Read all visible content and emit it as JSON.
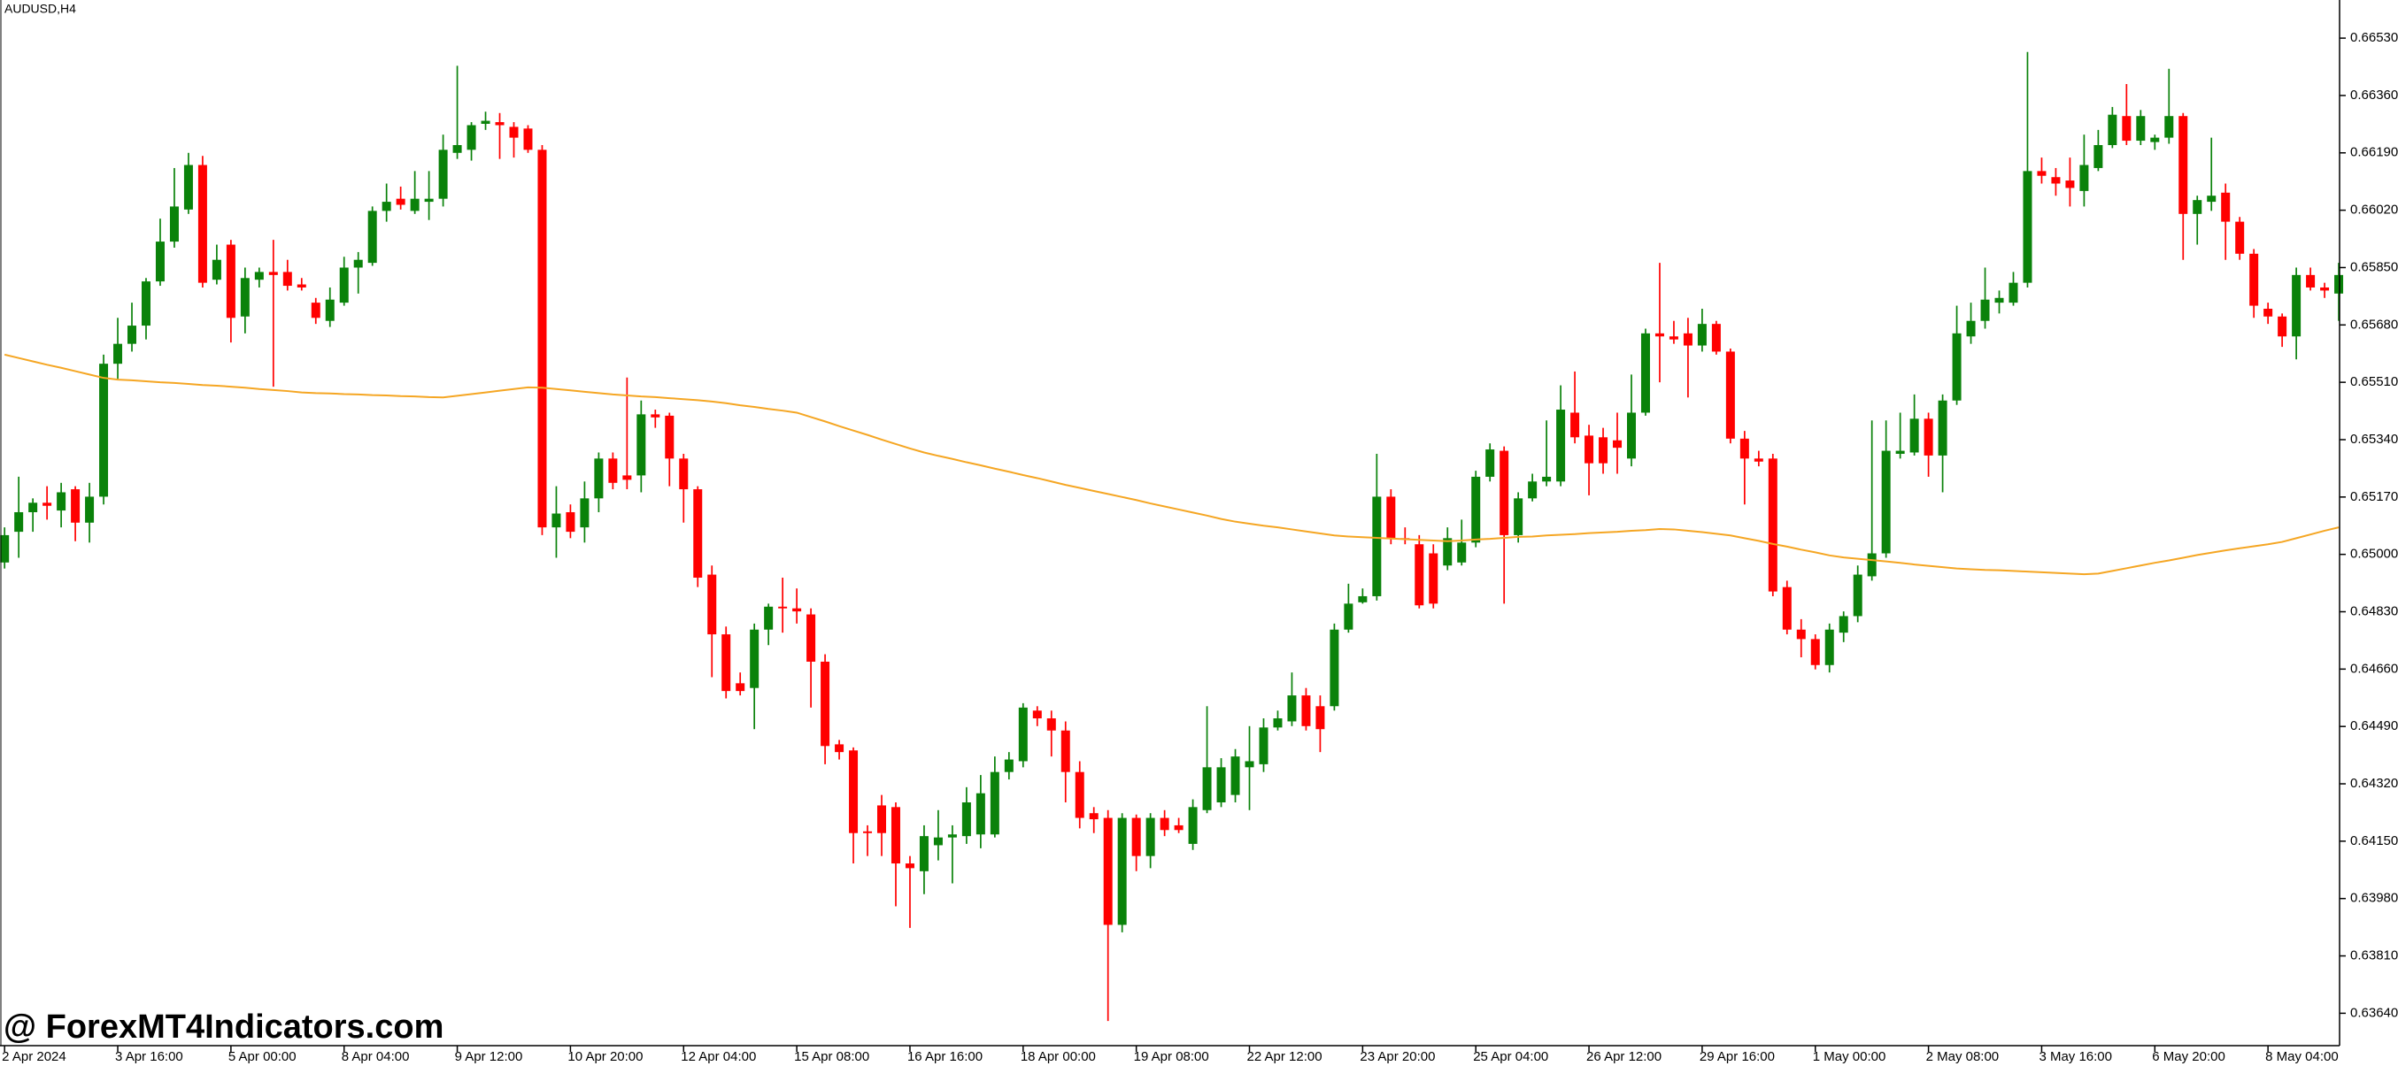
{
  "chart_data": {
    "type": "candlestick",
    "title": "AUDUSD,H4",
    "watermark": "@ ForexMT4Indicators.com",
    "up_color": "#0a820a",
    "down_color": "#ff0000",
    "ylim": [
      0.63544,
      0.66643
    ],
    "yticks": [
      {
        "value": 0.6653,
        "label": "0.66530"
      },
      {
        "value": 0.6636,
        "label": "0.66360"
      },
      {
        "value": 0.6619,
        "label": "0.66190"
      },
      {
        "value": 0.6602,
        "label": "0.66020"
      },
      {
        "value": 0.6585,
        "label": "0.65850"
      },
      {
        "value": 0.6568,
        "label": "0.65680"
      },
      {
        "value": 0.6551,
        "label": "0.65510"
      },
      {
        "value": 0.6534,
        "label": "0.65340"
      },
      {
        "value": 0.6517,
        "label": "0.65170"
      },
      {
        "value": 0.65,
        "label": "0.65000"
      },
      {
        "value": 0.6483,
        "label": "0.64830"
      },
      {
        "value": 0.6466,
        "label": "0.64660"
      },
      {
        "value": 0.6449,
        "label": "0.64490"
      },
      {
        "value": 0.6432,
        "label": "0.64320"
      },
      {
        "value": 0.6415,
        "label": "0.64150"
      },
      {
        "value": 0.6398,
        "label": "0.63980"
      },
      {
        "value": 0.6381,
        "label": "0.63810"
      },
      {
        "value": 0.6364,
        "label": "0.63640"
      }
    ],
    "categories": [
      "2 Apr 2024",
      null,
      null,
      null,
      null,
      null,
      null,
      null,
      "3 Apr 16:00",
      null,
      null,
      null,
      null,
      null,
      null,
      null,
      "5 Apr 00:00",
      null,
      null,
      null,
      null,
      null,
      null,
      null,
      "8 Apr 04:00",
      null,
      null,
      null,
      null,
      null,
      null,
      null,
      "9 Apr 12:00",
      null,
      null,
      null,
      null,
      null,
      null,
      null,
      "10 Apr 20:00",
      null,
      null,
      null,
      null,
      null,
      null,
      null,
      "12 Apr 04:00",
      null,
      null,
      null,
      null,
      null,
      null,
      null,
      "15 Apr 08:00",
      null,
      null,
      null,
      null,
      null,
      null,
      null,
      "16 Apr 16:00",
      null,
      null,
      null,
      null,
      null,
      null,
      null,
      "18 Apr 00:00",
      null,
      null,
      null,
      null,
      null,
      null,
      null,
      "19 Apr 08:00",
      null,
      null,
      null,
      null,
      null,
      null,
      null,
      "22 Apr 12:00",
      null,
      null,
      null,
      null,
      null,
      null,
      null,
      "23 Apr 20:00",
      null,
      null,
      null,
      null,
      null,
      null,
      null,
      "25 Apr 04:00",
      null,
      null,
      null,
      null,
      null,
      null,
      null,
      "26 Apr 12:00",
      null,
      null,
      null,
      null,
      null,
      null,
      null,
      "29 Apr 16:00",
      null,
      null,
      null,
      null,
      null,
      null,
      null,
      "1 May 00:00",
      null,
      null,
      null,
      null,
      null,
      null,
      null,
      "2 May 08:00",
      null,
      null,
      null,
      null,
      null,
      null,
      null,
      "3 May 16:00",
      null,
      null,
      null,
      null,
      null,
      null,
      null,
      "6 May 20:00",
      null,
      null,
      null,
      null,
      null,
      null,
      null,
      "8 May 04:00",
      null,
      null,
      null,
      null,
      null
    ],
    "open": [
      0.64976,
      0.65067,
      0.65125,
      0.65153,
      0.6513,
      0.65193,
      0.65094,
      0.65171,
      0.65565,
      0.65624,
      0.65678,
      0.65809,
      0.65927,
      0.66022,
      0.66154,
      0.65814,
      0.65918,
      0.65705,
      0.65814,
      0.65837,
      0.65837,
      0.658,
      0.65746,
      0.65692,
      0.65746,
      0.6585,
      0.65864,
      0.66018,
      0.66054,
      0.66018,
      0.66045,
      0.66054,
      0.6619,
      0.66199,
      0.66276,
      0.66281,
      0.66267,
      0.66262,
      0.66199,
      0.6508,
      0.65125,
      0.6508,
      0.65166,
      0.65284,
      0.65234,
      0.65234,
      0.65415,
      0.65411,
      0.65284,
      0.65193,
      0.6494,
      0.64763,
      0.64618,
      0.64604,
      0.64777,
      0.64845,
      0.6484,
      0.64822,
      0.64682,
      0.64437,
      0.64419,
      0.64179,
      0.64256,
      0.64251,
      0.64084,
      0.64061,
      0.64138,
      0.64161,
      0.64165,
      0.6417,
      0.6417,
      0.64355,
      0.64387,
      0.64537,
      0.64514,
      0.64478,
      0.64355,
      0.64233,
      0.64219,
      0.63902,
      0.64219,
      0.64106,
      0.64219,
      0.64197,
      0.64142,
      0.64242,
      0.64265,
      0.64287,
      0.64369,
      0.64378,
      0.64487,
      0.64505,
      0.64582,
      0.6455,
      0.6455,
      0.64777,
      0.64858,
      0.64876,
      0.65171,
      0.65048,
      0.6503,
      0.65003,
      0.64967,
      0.64976,
      0.65035,
      0.6523,
      0.65307,
      0.65057,
      0.65166,
      0.65216,
      0.65216,
      0.6542,
      0.65352,
      0.65347,
      0.65338,
      0.65284,
      0.6542,
      0.65655,
      0.65646,
      0.65655,
      0.65619,
      0.65683,
      0.65601,
      0.65343,
      0.65284,
      0.65284,
      0.64903,
      0.64777,
      0.64749,
      0.64672,
      0.64768,
      0.64817,
      0.64935,
      0.65003,
      0.65298,
      0.65302,
      0.65402,
      0.65293,
      0.65456,
      0.65646,
      0.65692,
      0.65746,
      0.65746,
      0.65805,
      0.66136,
      0.66118,
      0.66108,
      0.66077,
      0.66145,
      0.66213,
      0.66299,
      0.66226,
      0.66222,
      0.66235,
      0.66299,
      0.66009,
      0.66045,
      0.66072,
      0.65986,
      0.65891,
      0.65728,
      0.65705,
      0.65646,
      0.65828,
      0.65791,
      0.65773
    ],
    "high": [
      0.6508,
      0.6523,
      0.65166,
      0.65202,
      0.65212,
      0.65202,
      0.65212,
      0.65592,
      0.65701,
      0.65746,
      0.65819,
      0.65995,
      0.66145,
      0.6619,
      0.66181,
      0.65918,
      0.65932,
      0.6585,
      0.6585,
      0.65932,
      0.65873,
      0.65819,
      0.6576,
      0.65791,
      0.65882,
      0.65896,
      0.66031,
      0.66099,
      0.6609,
      0.66136,
      0.66136,
      0.66244,
      0.66448,
      0.66281,
      0.66312,
      0.66308,
      0.66281,
      0.66272,
      0.66213,
      0.65202,
      0.65148,
      0.65216,
      0.65302,
      0.65302,
      0.65524,
      0.65456,
      0.65429,
      0.6542,
      0.65298,
      0.65202,
      0.64967,
      0.64786,
      0.6465,
      0.64795,
      0.64854,
      0.64931,
      0.64899,
      0.6484,
      0.64704,
      0.6445,
      0.64428,
      0.64197,
      0.64287,
      0.64265,
      0.64106,
      0.64197,
      0.64242,
      0.64197,
      0.6431,
      0.64346,
      0.64401,
      0.64414,
      0.64559,
      0.6455,
      0.64537,
      0.64505,
      0.64387,
      0.64251,
      0.64242,
      0.64233,
      0.64229,
      0.64233,
      0.64242,
      0.64219,
      0.64274,
      0.6455,
      0.64396,
      0.64423,
      0.64491,
      0.64514,
      0.64537,
      0.6465,
      0.64604,
      0.64582,
      0.64795,
      0.64913,
      0.64899,
      0.65298,
      0.65193,
      0.6508,
      0.65057,
      0.6503,
      0.6508,
      0.65103,
      0.65248,
      0.65329,
      0.6532,
      0.65184,
      0.65239,
      0.65397,
      0.65501,
      0.65542,
      0.65384,
      0.65375,
      0.6542,
      0.65533,
      0.65669,
      0.65864,
      0.65692,
      0.65701,
      0.65728,
      0.65692,
      0.6561,
      0.65366,
      0.65307,
      0.65298,
      0.64922,
      0.64808,
      0.64763,
      0.64795,
      0.64831,
      0.64967,
      0.65397,
      0.65397,
      0.6542,
      0.65474,
      0.6542,
      0.65474,
      0.65737,
      0.65746,
      0.6585,
      0.65782,
      0.65837,
      0.66489,
      0.66176,
      0.66145,
      0.66176,
      0.66244,
      0.66258,
      0.66326,
      0.66394,
      0.66317,
      0.66244,
      0.66439,
      0.66308,
      0.66063,
      0.66235,
      0.66099,
      0.66,
      0.65905,
      0.65746,
      0.65714,
      0.6585,
      0.6585,
      0.65805,
      0.65864
    ],
    "low": [
      0.64958,
      0.6499,
      0.65067,
      0.65103,
      0.6508,
      0.65039,
      0.65035,
      0.65148,
      0.6552,
      0.65601,
      0.65637,
      0.65796,
      0.65909,
      0.66009,
      0.65791,
      0.658,
      0.65628,
      0.65655,
      0.65791,
      0.65497,
      0.65782,
      0.65782,
      0.65683,
      0.65674,
      0.65737,
      0.65773,
      0.65855,
      0.65986,
      0.66022,
      0.66009,
      0.65991,
      0.66031,
      0.66172,
      0.66167,
      0.66258,
      0.66172,
      0.66176,
      0.6619,
      0.65057,
      0.6499,
      0.65048,
      0.65035,
      0.65125,
      0.65193,
      0.65193,
      0.65184,
      0.65375,
      0.65202,
      0.65094,
      0.64903,
      0.64636,
      0.64573,
      0.64582,
      0.64482,
      0.64731,
      0.64768,
      0.64795,
      0.64546,
      0.64378,
      0.64392,
      0.64084,
      0.64106,
      0.64106,
      0.63957,
      0.63893,
      0.63993,
      0.64093,
      0.64025,
      0.64142,
      0.64129,
      0.64161,
      0.64333,
      0.64369,
      0.64491,
      0.64401,
      0.64265,
      0.64188,
      0.64174,
      0.63617,
      0.6388,
      0.64061,
      0.6407,
      0.64165,
      0.64174,
      0.64124,
      0.64233,
      0.64251,
      0.64265,
      0.64242,
      0.64355,
      0.64478,
      0.64491,
      0.64478,
      0.64414,
      0.64537,
      0.64768,
      0.64854,
      0.64863,
      0.6503,
      0.6503,
      0.6484,
      0.6484,
      0.64953,
      0.64967,
      0.65021,
      0.65216,
      0.64854,
      0.65035,
      0.65157,
      0.65202,
      0.65202,
      0.65329,
      0.65175,
      0.65239,
      0.65239,
      0.65261,
      0.65411,
      0.6551,
      0.65624,
      0.65465,
      0.65601,
      0.65592,
      0.65329,
      0.65148,
      0.65261,
      0.64876,
      0.64763,
      0.64695,
      0.64659,
      0.6465,
      0.6474,
      0.64799,
      0.64922,
      0.6499,
      0.65284,
      0.65293,
      0.6523,
      0.65184,
      0.65443,
      0.65624,
      0.65669,
      0.65714,
      0.65737,
      0.65791,
      0.66099,
      0.66063,
      0.66031,
      0.66031,
      0.66136,
      0.66204,
      0.66213,
      0.66213,
      0.66199,
      0.66217,
      0.65873,
      0.65918,
      0.66018,
      0.65873,
      0.65873,
      0.65701,
      0.65683,
      0.65615,
      0.65578,
      0.65782,
      0.6576,
      0.65692
    ],
    "close": [
      0.65057,
      0.65125,
      0.65153,
      0.65144,
      0.65184,
      0.65094,
      0.65171,
      0.65565,
      0.65624,
      0.65678,
      0.65809,
      0.65927,
      0.66031,
      0.66154,
      0.65805,
      0.65873,
      0.65701,
      0.65819,
      0.65837,
      0.65828,
      0.65796,
      0.65791,
      0.65701,
      0.65755,
      0.6585,
      0.65873,
      0.66018,
      0.66045,
      0.66036,
      0.66054,
      0.66054,
      0.66199,
      0.66213,
      0.66272,
      0.66285,
      0.66272,
      0.66235,
      0.66199,
      0.6508,
      0.65121,
      0.65067,
      0.65166,
      0.65284,
      0.65212,
      0.65221,
      0.65415,
      0.65406,
      0.65284,
      0.65193,
      0.64931,
      0.64763,
      0.64595,
      0.64595,
      0.64777,
      0.64845,
      0.6484,
      0.64831,
      0.64682,
      0.64432,
      0.64414,
      0.64174,
      0.64174,
      0.64174,
      0.64084,
      0.6407,
      0.64165,
      0.64161,
      0.6417,
      0.64265,
      0.64292,
      0.64355,
      0.64392,
      0.64546,
      0.64514,
      0.64478,
      0.64355,
      0.64219,
      0.64215,
      0.63902,
      0.64219,
      0.64106,
      0.64219,
      0.64183,
      0.64183,
      0.64251,
      0.64369,
      0.64369,
      0.64401,
      0.64387,
      0.64487,
      0.64514,
      0.64582,
      0.64491,
      0.64482,
      0.64777,
      0.64854,
      0.64876,
      0.65171,
      0.65048,
      0.65044,
      0.64849,
      0.64854,
      0.65048,
      0.65035,
      0.6523,
      0.65311,
      0.65057,
      0.65166,
      0.65216,
      0.6523,
      0.65429,
      0.65347,
      0.6527,
      0.6527,
      0.65316,
      0.6542,
      0.65655,
      0.65646,
      0.65637,
      0.65619,
      0.65683,
      0.65601,
      0.65343,
      0.65284,
      0.65275,
      0.6489,
      0.64777,
      0.64749,
      0.64672,
      0.64777,
      0.64817,
      0.6494,
      0.65003,
      0.65307,
      0.65307,
      0.65402,
      0.65293,
      0.65456,
      0.65655,
      0.65692,
      0.65755,
      0.6576,
      0.65805,
      0.66136,
      0.66122,
      0.66099,
      0.66086,
      0.66154,
      0.66213,
      0.66303,
      0.66226,
      0.66299,
      0.66235,
      0.66299,
      0.66009,
      0.6605,
      0.66063,
      0.65986,
      0.65891,
      0.65737,
      0.65705,
      0.65646,
      0.65828,
      0.65791,
      0.65782,
      0.65828
    ],
    "lines": [
      {
        "color": "#f5a623",
        "values": [
          0.65592,
          0.65582,
          0.65572,
          0.65562,
          0.65553,
          0.65543,
          0.65533,
          0.65523,
          0.65518,
          0.65516,
          0.65513,
          0.6551,
          0.65508,
          0.65505,
          0.65502,
          0.655,
          0.65497,
          0.65494,
          0.6549,
          0.65487,
          0.65484,
          0.6548,
          0.65478,
          0.65477,
          0.65475,
          0.65474,
          0.65472,
          0.65471,
          0.65469,
          0.65468,
          0.65466,
          0.65465,
          0.6547,
          0.65475,
          0.6548,
          0.65485,
          0.6549,
          0.65495,
          0.65494,
          0.6549,
          0.65486,
          0.65482,
          0.65478,
          0.65474,
          0.65471,
          0.65468,
          0.65466,
          0.65463,
          0.6546,
          0.65457,
          0.65453,
          0.65448,
          0.65442,
          0.65437,
          0.65431,
          0.65426,
          0.6542,
          0.65407,
          0.65394,
          0.6538,
          0.65367,
          0.65354,
          0.6534,
          0.65327,
          0.65314,
          0.65302,
          0.65292,
          0.65283,
          0.65273,
          0.65264,
          0.65254,
          0.65245,
          0.65235,
          0.65226,
          0.65216,
          0.65206,
          0.65197,
          0.65188,
          0.65179,
          0.6517,
          0.65161,
          0.65151,
          0.65142,
          0.65133,
          0.65124,
          0.65115,
          0.65105,
          0.65097,
          0.65091,
          0.65085,
          0.6508,
          0.65074,
          0.65068,
          0.65062,
          0.65056,
          0.65053,
          0.65051,
          0.65049,
          0.65047,
          0.65045,
          0.65043,
          0.65041,
          0.65039,
          0.65041,
          0.65044,
          0.65046,
          0.65049,
          0.65052,
          0.65053,
          0.65056,
          0.65058,
          0.6506,
          0.65063,
          0.65065,
          0.65067,
          0.6507,
          0.65072,
          0.65075,
          0.65074,
          0.6507,
          0.65066,
          0.65061,
          0.65056,
          0.65048,
          0.6504,
          0.65031,
          0.65023,
          0.65014,
          0.65006,
          0.64997,
          0.64991,
          0.64987,
          0.64983,
          0.64979,
          0.64975,
          0.6497,
          0.64966,
          0.64962,
          0.64958,
          0.64956,
          0.64954,
          0.64953,
          0.64951,
          0.64949,
          0.64947,
          0.64945,
          0.64943,
          0.64941,
          0.64943,
          0.64951,
          0.64959,
          0.64967,
          0.64975,
          0.64982,
          0.6499,
          0.64998,
          0.65005,
          0.65012,
          0.65018,
          0.65024,
          0.6503,
          0.65037,
          0.65048,
          0.65059,
          0.6507,
          0.6508
        ]
      }
    ]
  }
}
